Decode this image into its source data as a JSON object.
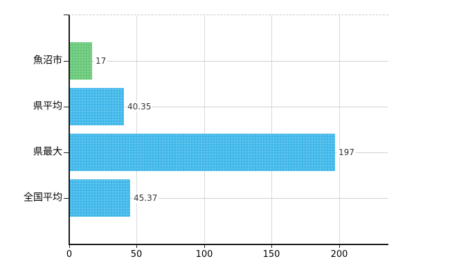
{
  "chart_data": {
    "type": "bar",
    "orientation": "horizontal",
    "title": "",
    "categories": [
      "魚沼市",
      "県平均",
      "県最大",
      "全国平均"
    ],
    "values": [
      17,
      40.35,
      197,
      45.37
    ],
    "value_labels": [
      "17",
      "40.35",
      "197",
      "45.37"
    ],
    "bar_colors": [
      "#69c979",
      "#41b8ea",
      "#41b8ea",
      "#41b8ea"
    ],
    "x_ticks": [
      0,
      50,
      100,
      150,
      200
    ],
    "x_tick_labels": [
      "0",
      "50",
      "100",
      "150",
      "200"
    ],
    "xlim": [
      0,
      235.9
    ],
    "grid": true,
    "legend": false
  },
  "colors": {
    "bar_green": "#69c979",
    "bar_blue": "#41b8ea",
    "axis": "#1a1a1a",
    "vertical_gridline": "#d9d9d9",
    "row_gridline": "#d0d0d0",
    "top_border": "#c9c9c9",
    "category_text": "#000000",
    "value_text": "#333333",
    "background": "#ffffff"
  }
}
